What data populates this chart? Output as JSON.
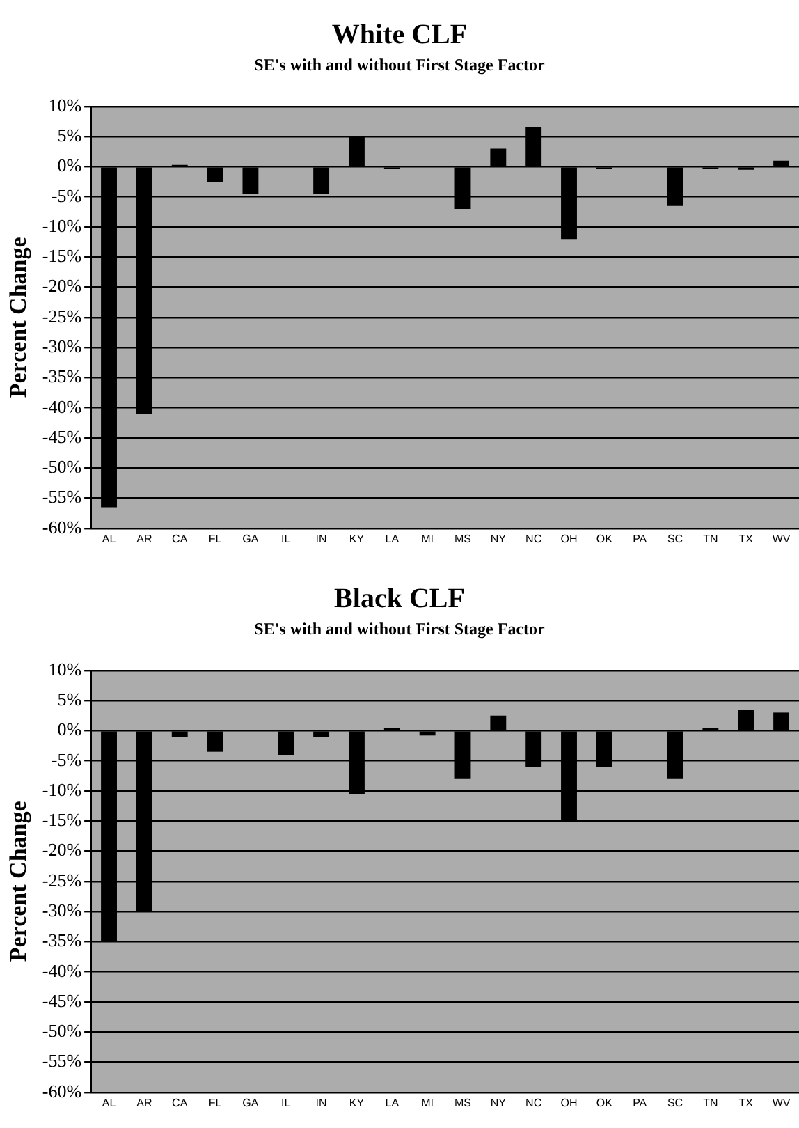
{
  "chart_data": [
    {
      "type": "bar",
      "title": "White CLF",
      "subtitle": "SE's with and without First Stage Factor",
      "ylabel": "Percent Change",
      "categories": [
        "AL",
        "AR",
        "CA",
        "FL",
        "GA",
        "IL",
        "IN",
        "KY",
        "LA",
        "MI",
        "MS",
        "NY",
        "NC",
        "OH",
        "OK",
        "PA",
        "SC",
        "TN",
        "TX",
        "WV"
      ],
      "values": [
        -56.5,
        -41,
        0.3,
        -2.5,
        -4.5,
        0,
        -4.5,
        5,
        -0.3,
        0,
        -7,
        3,
        6.5,
        -12,
        -0.3,
        0,
        -6.5,
        -0.3,
        -0.5,
        1
      ],
      "color": "#000000",
      "ylim": [
        -60,
        10
      ],
      "yticks": [
        {
          "value": 10,
          "label": "10%"
        },
        {
          "value": 5,
          "label": "5%"
        },
        {
          "value": 0,
          "label": "0%"
        },
        {
          "value": -5,
          "label": "-5%"
        },
        {
          "value": -10,
          "label": "-10%"
        },
        {
          "value": -15,
          "label": "-15%"
        },
        {
          "value": -20,
          "label": "-20%"
        },
        {
          "value": -25,
          "label": "-25%"
        },
        {
          "value": -30,
          "label": "-30%"
        },
        {
          "value": -35,
          "label": "-35%"
        },
        {
          "value": -40,
          "label": "-40%"
        },
        {
          "value": -45,
          "label": "-45%"
        },
        {
          "value": -50,
          "label": "-50%"
        },
        {
          "value": -55,
          "label": "-55%"
        },
        {
          "value": -60,
          "label": "-60%"
        }
      ],
      "grid": "y"
    },
    {
      "type": "bar",
      "title": "Black CLF",
      "subtitle": "SE's with and without First Stage Factor",
      "ylabel": "Percent Change",
      "categories": [
        "AL",
        "AR",
        "CA",
        "FL",
        "GA",
        "IL",
        "IN",
        "KY",
        "LA",
        "MI",
        "MS",
        "NY",
        "NC",
        "OH",
        "OK",
        "PA",
        "SC",
        "TN",
        "TX",
        "WV"
      ],
      "values": [
        -35,
        -30,
        -1,
        -3.5,
        0,
        -4,
        -1,
        -10.5,
        0.5,
        -0.8,
        -8,
        2.5,
        -6,
        -15,
        -6,
        0,
        -8,
        0.5,
        3.5,
        3
      ],
      "color": "#000000",
      "ylim": [
        -60,
        10
      ],
      "yticks": [
        {
          "value": 10,
          "label": "10%"
        },
        {
          "value": 5,
          "label": "5%"
        },
        {
          "value": 0,
          "label": "0%"
        },
        {
          "value": -5,
          "label": "-5%"
        },
        {
          "value": -10,
          "label": "-10%"
        },
        {
          "value": -15,
          "label": "-15%"
        },
        {
          "value": -20,
          "label": "-20%"
        },
        {
          "value": -25,
          "label": "-25%"
        },
        {
          "value": -30,
          "label": "-30%"
        },
        {
          "value": -35,
          "label": "-35%"
        },
        {
          "value": -40,
          "label": "-40%"
        },
        {
          "value": -45,
          "label": "-45%"
        },
        {
          "value": -50,
          "label": "-50%"
        },
        {
          "value": -55,
          "label": "-55%"
        },
        {
          "value": -60,
          "label": "-60%"
        }
      ],
      "grid": "y"
    }
  ]
}
